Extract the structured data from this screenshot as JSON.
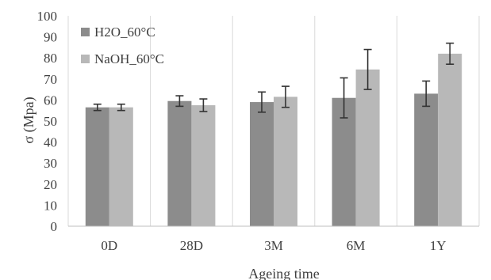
{
  "chart_data": {
    "type": "bar",
    "title": "",
    "xlabel": "Ageing time",
    "ylabel": "σ (Mpa)",
    "ylim": [
      0,
      100
    ],
    "yticks": [
      0,
      10,
      20,
      30,
      40,
      50,
      60,
      70,
      80,
      90,
      100
    ],
    "grid": "vertical category separators",
    "legend": "top-left",
    "categories": [
      "0D",
      "28D",
      "3M",
      "6M",
      "1Y"
    ],
    "series": [
      {
        "name": "H2O_60°C",
        "color": "#8c8c8c",
        "values": [
          56.5,
          59.5,
          59,
          61,
          63
        ],
        "errors": [
          1.5,
          2.5,
          4.8,
          9.5,
          6
        ]
      },
      {
        "name": "NaOH_60°C",
        "color": "#b8b8b8",
        "values": [
          56.5,
          57.5,
          61.5,
          74.5,
          82
        ],
        "errors": [
          1.5,
          3,
          5,
          9.5,
          5
        ]
      }
    ]
  }
}
